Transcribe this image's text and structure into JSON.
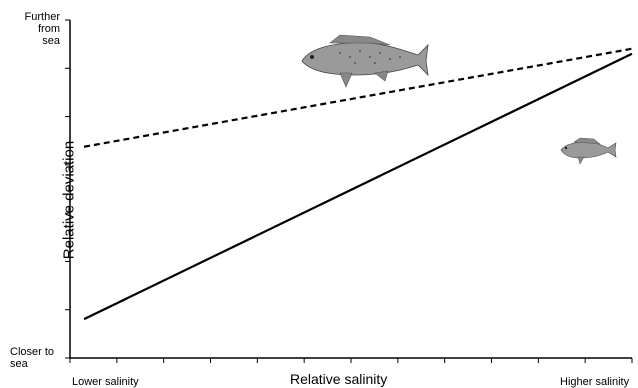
{
  "chart_data": {
    "type": "line",
    "title": "",
    "xlabel": "Relative salinity",
    "ylabel": "Relative deviation",
    "x_ticks_text": {
      "left": "Lower salinity",
      "right": "Higher salinity"
    },
    "y_ticks_text": {
      "top_line1": "Further",
      "top_line2": "from sea",
      "bottom_line1": "Closer to",
      "bottom_line2": "sea"
    },
    "xlim": [
      0,
      1
    ],
    "ylim": [
      0,
      1
    ],
    "series": [
      {
        "style": "dashed",
        "color": "#000000",
        "x": [
          0.025,
          1.0
        ],
        "y": [
          0.625,
          0.915
        ]
      },
      {
        "style": "solid",
        "color": "#000000",
        "x": [
          0.025,
          1.0
        ],
        "y": [
          0.115,
          0.9
        ]
      }
    ],
    "x_tick_count": 12,
    "y_tick_count": 7,
    "icons": [
      "large-fish-icon",
      "small-fish-icon"
    ]
  }
}
